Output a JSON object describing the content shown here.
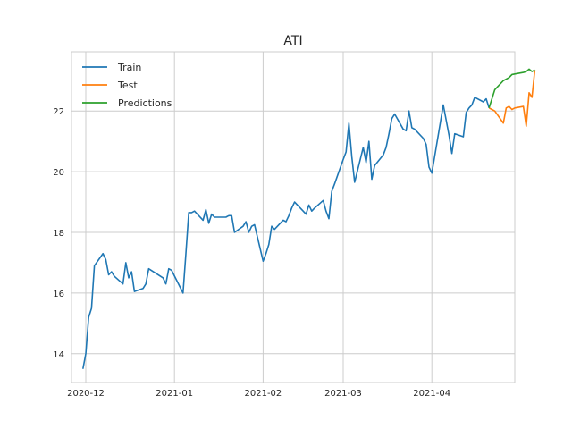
{
  "chart_data": {
    "type": "line",
    "title": "ATI",
    "xlabel": "",
    "ylabel": "",
    "x_axis_type": "date",
    "xlim": [
      "2020-11-26",
      "2021-04-30"
    ],
    "ylim": [
      13.05,
      23.95
    ],
    "x_ticks": [
      {
        "date": "2020-12-01",
        "label": "2020-12"
      },
      {
        "date": "2021-01-01",
        "label": "2021-01"
      },
      {
        "date": "2021-02-01",
        "label": "2021-02"
      },
      {
        "date": "2021-03-01",
        "label": "2021-03"
      },
      {
        "date": "2021-04-01",
        "label": "2021-04"
      }
    ],
    "y_ticks": [
      14,
      16,
      18,
      20,
      22
    ],
    "grid": true,
    "legend_position": "top-left",
    "series": [
      {
        "name": "Train",
        "color": "#1f77b4",
        "points": [
          [
            "2020-11-30",
            13.5
          ],
          [
            "2020-12-01",
            14.0
          ],
          [
            "2020-12-02",
            15.2
          ],
          [
            "2020-12-03",
            15.5
          ],
          [
            "2020-12-04",
            16.9
          ],
          [
            "2020-12-07",
            17.3
          ],
          [
            "2020-12-08",
            17.1
          ],
          [
            "2020-12-09",
            16.6
          ],
          [
            "2020-12-10",
            16.7
          ],
          [
            "2020-12-11",
            16.55
          ],
          [
            "2020-12-14",
            16.3
          ],
          [
            "2020-12-15",
            17.0
          ],
          [
            "2020-12-16",
            16.5
          ],
          [
            "2020-12-17",
            16.7
          ],
          [
            "2020-12-18",
            16.05
          ],
          [
            "2020-12-21",
            16.15
          ],
          [
            "2020-12-22",
            16.3
          ],
          [
            "2020-12-23",
            16.8
          ],
          [
            "2020-12-28",
            16.5
          ],
          [
            "2020-12-29",
            16.3
          ],
          [
            "2020-12-30",
            16.8
          ],
          [
            "2020-12-31",
            16.75
          ],
          [
            "2021-01-04",
            16.0
          ],
          [
            "2021-01-05",
            17.3
          ],
          [
            "2021-01-06",
            18.65
          ],
          [
            "2021-01-07",
            18.65
          ],
          [
            "2021-01-08",
            18.7
          ],
          [
            "2021-01-11",
            18.4
          ],
          [
            "2021-01-12",
            18.75
          ],
          [
            "2021-01-13",
            18.3
          ],
          [
            "2021-01-14",
            18.6
          ],
          [
            "2021-01-15",
            18.5
          ],
          [
            "2021-01-19",
            18.5
          ],
          [
            "2021-01-20",
            18.55
          ],
          [
            "2021-01-21",
            18.55
          ],
          [
            "2021-01-22",
            18.0
          ],
          [
            "2021-01-25",
            18.2
          ],
          [
            "2021-01-26",
            18.35
          ],
          [
            "2021-01-27",
            18.0
          ],
          [
            "2021-01-28",
            18.2
          ],
          [
            "2021-01-29",
            18.25
          ],
          [
            "2021-02-01",
            17.05
          ],
          [
            "2021-02-02",
            17.3
          ],
          [
            "2021-02-03",
            17.6
          ],
          [
            "2021-02-04",
            18.2
          ],
          [
            "2021-02-05",
            18.1
          ],
          [
            "2021-02-08",
            18.4
          ],
          [
            "2021-02-09",
            18.35
          ],
          [
            "2021-02-10",
            18.55
          ],
          [
            "2021-02-11",
            18.8
          ],
          [
            "2021-02-12",
            19.0
          ],
          [
            "2021-02-16",
            18.6
          ],
          [
            "2021-02-17",
            18.9
          ],
          [
            "2021-02-18",
            18.7
          ],
          [
            "2021-02-19",
            18.8
          ],
          [
            "2021-02-22",
            19.05
          ],
          [
            "2021-02-23",
            18.7
          ],
          [
            "2021-02-24",
            18.45
          ],
          [
            "2021-02-25",
            19.35
          ],
          [
            "2021-02-26",
            19.6
          ],
          [
            "2021-03-01",
            20.4
          ],
          [
            "2021-03-02",
            20.65
          ],
          [
            "2021-03-03",
            21.6
          ],
          [
            "2021-03-04",
            20.5
          ],
          [
            "2021-03-05",
            19.65
          ],
          [
            "2021-03-08",
            20.8
          ],
          [
            "2021-03-09",
            20.3
          ],
          [
            "2021-03-10",
            21.0
          ],
          [
            "2021-03-11",
            19.75
          ],
          [
            "2021-03-12",
            20.2
          ],
          [
            "2021-03-15",
            20.55
          ],
          [
            "2021-03-16",
            20.8
          ],
          [
            "2021-03-17",
            21.25
          ],
          [
            "2021-03-18",
            21.75
          ],
          [
            "2021-03-19",
            21.9
          ],
          [
            "2021-03-22",
            21.4
          ],
          [
            "2021-03-23",
            21.35
          ],
          [
            "2021-03-24",
            22.0
          ],
          [
            "2021-03-25",
            21.45
          ],
          [
            "2021-03-26",
            21.4
          ],
          [
            "2021-03-29",
            21.1
          ],
          [
            "2021-03-30",
            20.9
          ],
          [
            "2021-03-31",
            20.15
          ],
          [
            "2021-04-01",
            19.95
          ],
          [
            "2021-04-05",
            22.2
          ],
          [
            "2021-04-06",
            21.7
          ],
          [
            "2021-04-07",
            21.2
          ],
          [
            "2021-04-08",
            20.6
          ],
          [
            "2021-04-09",
            21.25
          ],
          [
            "2021-04-12",
            21.15
          ],
          [
            "2021-04-13",
            21.95
          ],
          [
            "2021-04-14",
            22.1
          ],
          [
            "2021-04-15",
            22.2
          ],
          [
            "2021-04-16",
            22.45
          ],
          [
            "2021-04-19",
            22.3
          ],
          [
            "2021-04-20",
            22.4
          ],
          [
            "2021-04-21",
            22.1
          ]
        ]
      },
      {
        "name": "Test",
        "color": "#ff7f0e",
        "points": [
          [
            "2021-04-21",
            22.1
          ],
          [
            "2021-04-22",
            22.05
          ],
          [
            "2021-04-23",
            22.0
          ],
          [
            "2021-04-26",
            21.6
          ],
          [
            "2021-04-27",
            22.1
          ],
          [
            "2021-04-28",
            22.15
          ],
          [
            "2021-04-29",
            22.05
          ],
          [
            "2021-04-30",
            22.1
          ],
          [
            "2021-05-03",
            22.15
          ],
          [
            "2021-05-04",
            21.5
          ],
          [
            "2021-05-05",
            22.6
          ],
          [
            "2021-05-06",
            22.45
          ],
          [
            "2021-05-07",
            23.35
          ]
        ]
      },
      {
        "name": "Predictions",
        "color": "#2ca02c",
        "points": [
          [
            "2021-04-21",
            22.1
          ],
          [
            "2021-04-22",
            22.4
          ],
          [
            "2021-04-23",
            22.7
          ],
          [
            "2021-04-26",
            23.0
          ],
          [
            "2021-04-27",
            23.05
          ],
          [
            "2021-04-28",
            23.1
          ],
          [
            "2021-04-29",
            23.2
          ],
          [
            "2021-04-30",
            23.22
          ],
          [
            "2021-05-03",
            23.27
          ],
          [
            "2021-05-04",
            23.3
          ],
          [
            "2021-05-05",
            23.38
          ],
          [
            "2021-05-06",
            23.3
          ],
          [
            "2021-05-07",
            23.35
          ]
        ]
      }
    ]
  }
}
